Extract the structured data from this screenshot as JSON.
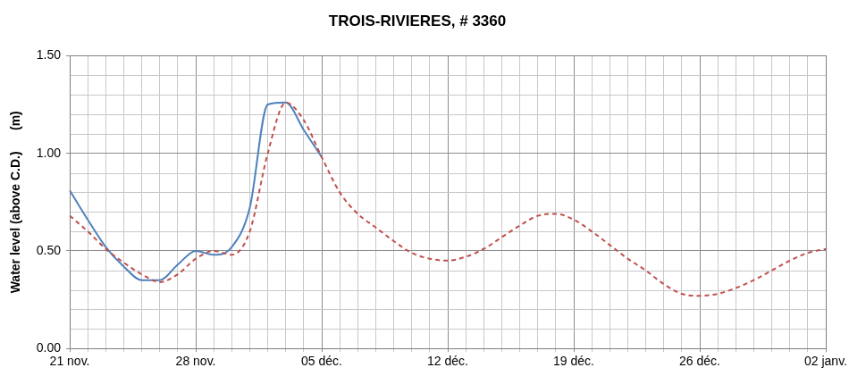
{
  "chart_data": {
    "type": "line",
    "title": "TROIS-RIVIERES, # 3360",
    "y_label": "Water level (above C.D.)      (m)",
    "categories": [
      "21 nov.",
      null,
      null,
      null,
      null,
      null,
      null,
      "28 nov.",
      null,
      null,
      null,
      null,
      null,
      null,
      "05 déc.",
      null,
      null,
      null,
      null,
      null,
      null,
      "12 déc.",
      null,
      null,
      null,
      null,
      null,
      null,
      "19 déc.",
      null,
      null,
      null,
      null,
      null,
      null,
      "26 déc.",
      null,
      null,
      null,
      null,
      null,
      null,
      "02 janv."
    ],
    "series": [
      {
        "color": "#c0504d",
        "line_style": "dashed",
        "values": [
          0.68,
          0.6,
          0.51,
          0.44,
          0.38,
          0.34,
          0.38,
          0.46,
          0.5,
          0.48,
          0.6,
          1.0,
          1.26,
          1.17,
          0.98,
          0.8,
          0.69,
          0.62,
          0.55,
          0.49,
          0.46,
          0.45,
          0.47,
          0.51,
          0.57,
          0.63,
          0.68,
          0.69,
          0.66,
          0.6,
          0.53,
          0.46,
          0.4,
          0.33,
          0.28,
          0.27,
          0.28,
          0.31,
          0.35,
          0.4,
          0.45,
          0.49,
          0.51
        ]
      },
      {
        "color": "#4f81bd",
        "line_style": "solid",
        "values": [
          0.81,
          0.66,
          0.52,
          0.42,
          0.35,
          0.35,
          0.43,
          0.5,
          0.48,
          0.52,
          0.72,
          1.25,
          1.26,
          1.12,
          0.98,
          null,
          null,
          null,
          null,
          null,
          null,
          null,
          null,
          null,
          null,
          null,
          null,
          null,
          null,
          null,
          null,
          null,
          null,
          null,
          null,
          null,
          null,
          null,
          null,
          null,
          null,
          null,
          null
        ]
      }
    ],
    "ylim": [
      0,
      1.5
    ],
    "yticks": [
      {
        "value": 0,
        "label": "0.00"
      },
      {
        "value": 0.5,
        "label": "0.50"
      },
      {
        "value": 1,
        "label": "1.00"
      },
      {
        "value": 1.5,
        "label": "1.50"
      }
    ],
    "grid": true
  }
}
